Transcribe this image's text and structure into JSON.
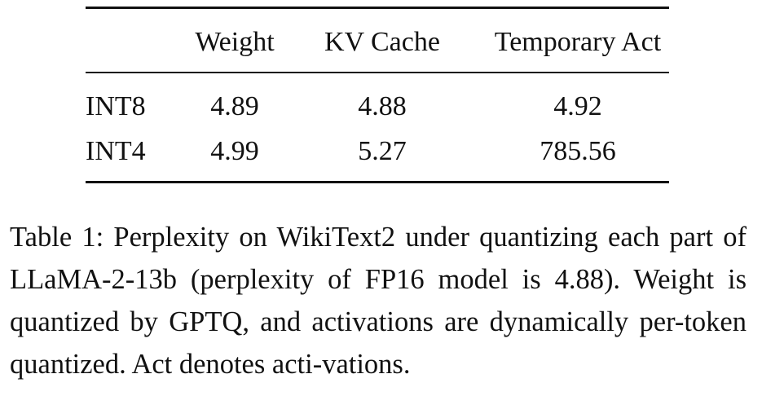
{
  "table": {
    "columns": [
      "",
      "Weight",
      "KV Cache",
      "Temporary Act"
    ],
    "rows": [
      {
        "label": "INT8",
        "values": [
          "4.89",
          "4.88",
          "4.92"
        ]
      },
      {
        "label": "INT4",
        "values": [
          "4.99",
          "5.27",
          "785.56"
        ]
      }
    ]
  },
  "caption": {
    "label": "Table 1:",
    "text": "Perplexity on WikiText2 under quantizing each part of LLaMA-2-13b (perplexity of FP16 model is 4.88). Weight is quantized by GPTQ, and activations are dynamically per-token quantized. Act denotes acti-vations."
  }
}
